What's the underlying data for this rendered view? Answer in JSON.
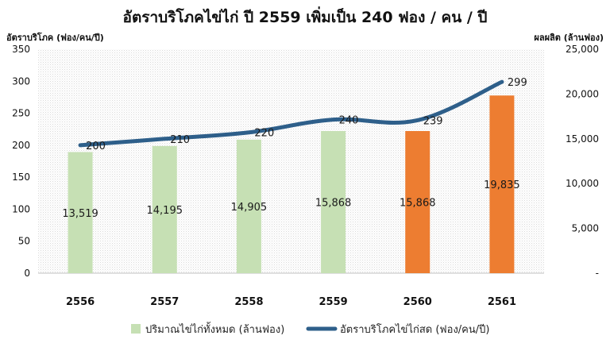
{
  "chart_data": {
    "type": "bar",
    "title": "อัตราบริโภคไข่ไก่ ปี 2559 เพิ่มเป็น 240 ฟอง / คน / ปี",
    "ylabel_left": "อัตราบริโภค (ฟอง/คน/ปี)",
    "ylabel_right": "ผลผลิต (ล้านฟอง)",
    "categories": [
      "2556",
      "2557",
      "2558",
      "2559",
      "2560",
      "2561"
    ],
    "left_axis": {
      "min": 0,
      "max": 350,
      "ticks": [
        "0",
        "50",
        "100",
        "150",
        "200",
        "250",
        "300",
        "350"
      ]
    },
    "right_axis": {
      "min": 0,
      "max": 25000,
      "ticks": [
        "-",
        "5,000",
        "10,000",
        "15,000",
        "20,000",
        "25,000"
      ]
    },
    "series": [
      {
        "name": "ปริมาณไข่ไก่ทั้งหมด (ล้านฟอง)",
        "kind": "bar",
        "axis": "right",
        "values": [
          13519,
          14195,
          14905,
          15868,
          15868,
          19835
        ],
        "labels": [
          "13,519",
          "14,195",
          "14,905",
          "15,868",
          "15,868",
          "19,835"
        ],
        "colors": [
          "#c6e0b4",
          "#c6e0b4",
          "#c6e0b4",
          "#c6e0b4",
          "#ed7d31",
          "#ed7d31"
        ]
      },
      {
        "name": "อัตราบริโภคไข่ไก่สด (ฟอง/คน/ปี)",
        "kind": "line",
        "axis": "left",
        "values": [
          200,
          210,
          220,
          240,
          239,
          299
        ],
        "labels": [
          "200",
          "210",
          "220",
          "240",
          "239",
          "299"
        ],
        "color": "#2e5f8a"
      }
    ],
    "grid": false,
    "legend_position": "bottom"
  }
}
